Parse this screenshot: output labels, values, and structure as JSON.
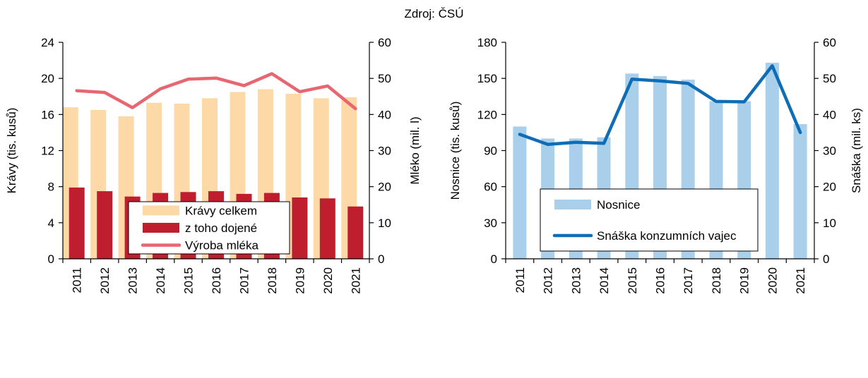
{
  "source": "Zdroj: ČSÚ",
  "chart_data": [
    {
      "type": "bar",
      "categories": [
        "2011",
        "2012",
        "2013",
        "2014",
        "2015",
        "2016",
        "2017",
        "2018",
        "2019",
        "2020",
        "2021"
      ],
      "ylabel": "Krávy (tis. kusů)",
      "ylim": [
        0,
        24
      ],
      "yticks": [
        0,
        4,
        8,
        12,
        16,
        20,
        24
      ],
      "y2label": "Mléko (mil. l)",
      "y2lim": [
        0,
        60
      ],
      "y2ticks": [
        0,
        10,
        20,
        30,
        40,
        50,
        60
      ],
      "legend_position": "bottom-center",
      "series": [
        {
          "name": "Krávy celkem",
          "kind": "bar",
          "axis": "left",
          "color": "#fdd9a8",
          "values": [
            16.8,
            16.5,
            15.8,
            17.3,
            17.2,
            17.8,
            18.5,
            18.8,
            18.3,
            17.8,
            17.9
          ]
        },
        {
          "name": "z toho dojené",
          "kind": "bar",
          "axis": "left",
          "color": "#be1e2d",
          "values": [
            7.9,
            7.5,
            6.9,
            7.3,
            7.4,
            7.5,
            7.2,
            7.3,
            6.8,
            6.7,
            5.8
          ]
        },
        {
          "name": "Výroba mléka",
          "kind": "line",
          "axis": "right",
          "color": "#e8666f",
          "values": [
            46.6,
            46.1,
            41.9,
            47.1,
            49.8,
            50.1,
            48.0,
            51.3,
            46.3,
            47.9,
            41.6
          ]
        }
      ]
    },
    {
      "type": "bar",
      "categories": [
        "2011",
        "2012",
        "2013",
        "2014",
        "2015",
        "2016",
        "2017",
        "2018",
        "2019",
        "2020",
        "2021"
      ],
      "ylabel": "Nosnice (tis. kusů)",
      "ylim": [
        0,
        180
      ],
      "yticks": [
        0,
        30,
        60,
        90,
        120,
        150,
        180
      ],
      "y2label": "Snáška (mil. ks)",
      "y2lim": [
        0,
        60
      ],
      "y2ticks": [
        0,
        10,
        20,
        30,
        40,
        50,
        60
      ],
      "legend_position": "bottom-center",
      "series": [
        {
          "name": "Nosnice",
          "kind": "bar",
          "axis": "left",
          "color": "#a9cfea",
          "values": [
            110,
            100,
            100,
            101,
            154,
            152,
            149,
            131,
            131,
            163,
            112
          ]
        },
        {
          "name": "Snáška konzumních vajec",
          "kind": "line",
          "axis": "right",
          "color": "#0e6db5",
          "values": [
            34.5,
            31.7,
            32.3,
            32.0,
            49.8,
            49.3,
            48.6,
            43.6,
            43.5,
            53.5,
            35.0
          ]
        }
      ]
    }
  ]
}
